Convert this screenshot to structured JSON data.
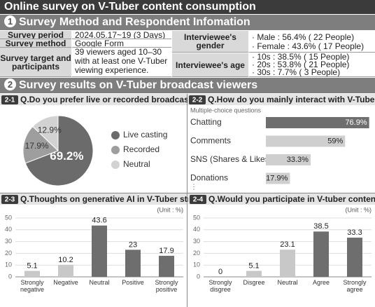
{
  "title": "Online survey on V-Tuber content consumption",
  "section1": {
    "number": "1",
    "title": "Survey Method and Respondent Infomation"
  },
  "table": {
    "rows": [
      [
        "Survey period",
        "2024.05.17~19 (3 Days)"
      ],
      [
        "Survey method",
        "Google Form"
      ],
      [
        "Survey target and participants",
        "39 viewers aged 10–30 with at least one V-Tuber viewing experience."
      ]
    ],
    "respondents": [
      {
        "label": "Interviewee's gender",
        "items": [
          "· Male : 56.4% ( 22 People)",
          "· Female : 43.6% ( 17 People)"
        ]
      },
      {
        "label": "Interviewee's age",
        "items": [
          "· 10s : 38.5% ( 15 People)",
          "· 20s : 53.8% ( 21 People)",
          "· 30s : 7.7% ( 3 People)"
        ]
      }
    ]
  },
  "section2": {
    "number": "2",
    "title": "Survey results on V-Tuber broadcast viewers"
  },
  "chart_data": [
    {
      "number": "2-1",
      "type": "pie",
      "title": "Q.Do you prefer live or recorded broadcasts?",
      "categories": [
        "Live casting",
        "Recorded",
        "Neutral"
      ],
      "values": [
        69.2,
        17.9,
        12.9
      ],
      "value_labels": [
        "69.2%",
        "17.9%",
        "12.9%"
      ],
      "colors": [
        "#6b6b6b",
        "#9e9e9e",
        "#d2d2d2"
      ]
    },
    {
      "number": "2-2",
      "type": "hbar",
      "title": "Q.How do you mainly interact with V-Tubers?",
      "subtitle": "Multiple-choice questions",
      "categories": [
        "Chatting",
        "Comments",
        "SNS (Shares & Likes)",
        "Donations"
      ],
      "values": [
        76.9,
        59,
        33.3,
        17.9
      ],
      "value_labels": [
        "76.9%",
        "59%",
        "33.3%",
        "17.9%"
      ],
      "colors": [
        "#6e6e6e",
        "#cfcfcf",
        "#cfcfcf",
        "#cfcfcf"
      ],
      "more": "⋮"
    },
    {
      "number": "2-3",
      "type": "bar",
      "title": "Q.Thoughts on generative AI in V-Tuber streams?",
      "unit": "(Unit : %)",
      "categories": [
        "Strongly negative",
        "Negative",
        "Neutral",
        "Positive",
        "Strongly positive"
      ],
      "values": [
        5.1,
        10.2,
        43.6,
        23,
        17.9
      ],
      "colors": [
        "#c8c8c8",
        "#c8c8c8",
        "#6e6e6e",
        "#6e6e6e",
        "#6e6e6e"
      ],
      "ylim": [
        0,
        50
      ],
      "yticks": [
        0,
        10,
        20,
        30,
        40,
        50
      ],
      "grid": true
    },
    {
      "number": "2-4",
      "type": "bar",
      "title": "Q.Would you participate in V-tuber content in XR?",
      "unit": "(Unit : %)",
      "categories": [
        "Strongly disgree",
        "Disgree",
        "Neutral",
        "Agree",
        "Strongly agree"
      ],
      "values": [
        0,
        5.1,
        23.1,
        38.5,
        33.3
      ],
      "colors": [
        "#c8c8c8",
        "#c8c8c8",
        "#c8c8c8",
        "#6e6e6e",
        "#6e6e6e"
      ],
      "ylim": [
        0,
        50
      ],
      "yticks": [
        0,
        10,
        20,
        30,
        40,
        50
      ],
      "grid": true
    }
  ]
}
